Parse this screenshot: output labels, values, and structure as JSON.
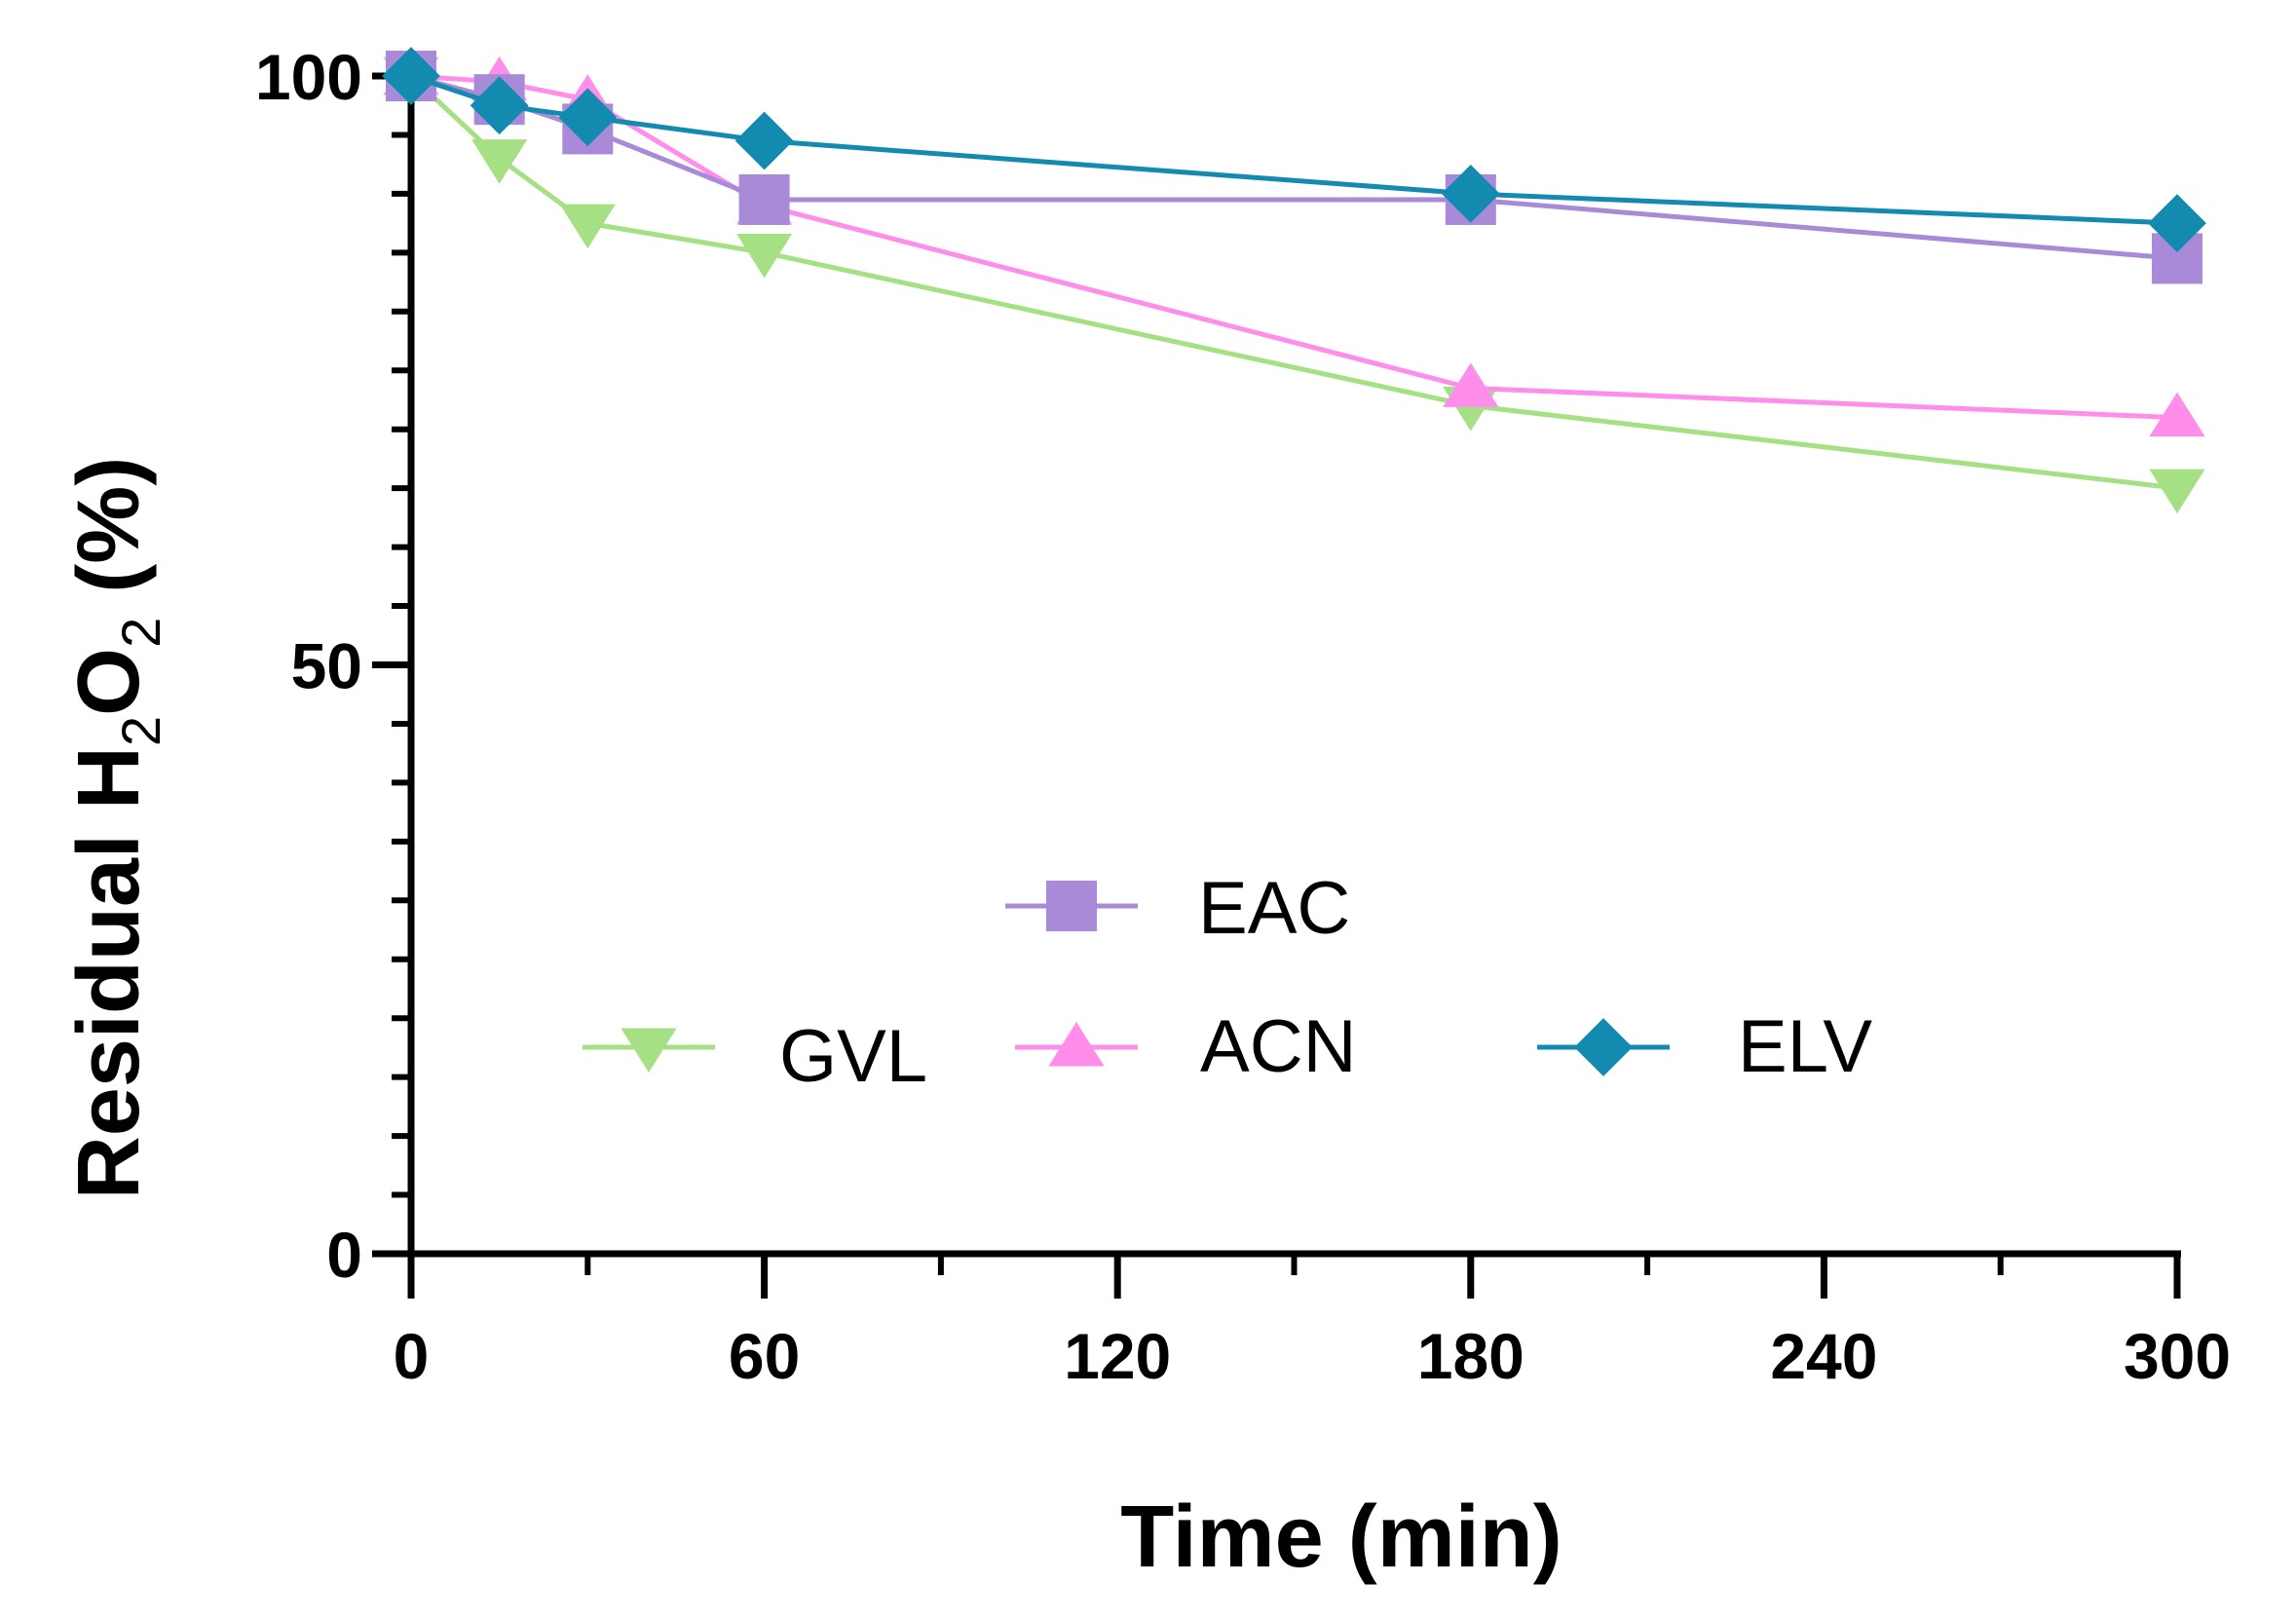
{
  "chart_data": {
    "type": "line",
    "title": "",
    "xlabel": "Time (min)",
    "ylabel": {
      "main": "Residual H",
      "sub1": "2",
      "mid": "O",
      "sub2": "2",
      "tail": " (%)"
    },
    "xlim": [
      0,
      300
    ],
    "ylim": [
      0,
      100
    ],
    "x_ticks": [
      0,
      60,
      120,
      180,
      240,
      300
    ],
    "y_ticks": [
      0,
      50,
      100
    ],
    "y_minor_step": 5,
    "x_minor_step": 30,
    "grid": false,
    "legend_position": "center",
    "series": [
      {
        "name": "EAC",
        "color": "#A98AD8",
        "marker": "square",
        "x": [
          0,
          15,
          30,
          60,
          180,
          300
        ],
        "y": [
          100,
          98,
          95.5,
          89.5,
          89.5,
          84.5
        ]
      },
      {
        "name": "GVL",
        "color": "#A6E085",
        "marker": "triangle-down",
        "x": [
          0,
          15,
          30,
          60,
          180,
          300
        ],
        "y": [
          100,
          93,
          87.5,
          85,
          72,
          65
        ]
      },
      {
        "name": "ACN",
        "color": "#FF8EEA",
        "marker": "triangle-up",
        "x": [
          0,
          15,
          30,
          60,
          180,
          300
        ],
        "y": [
          100,
          99.5,
          98,
          89,
          73.5,
          71
        ]
      },
      {
        "name": "ELV",
        "color": "#138AB0",
        "marker": "diamond",
        "x": [
          0,
          15,
          30,
          60,
          180,
          300
        ],
        "y": [
          100,
          97.5,
          96.5,
          94.5,
          90,
          87.5
        ]
      }
    ]
  }
}
